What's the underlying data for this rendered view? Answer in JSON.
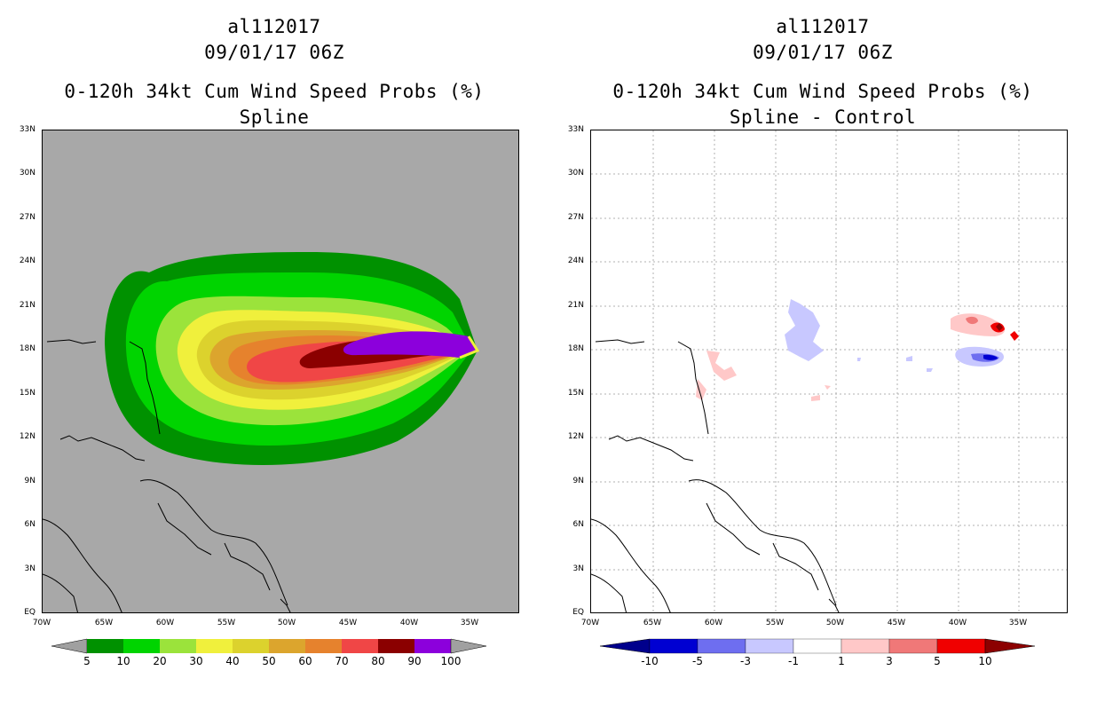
{
  "left": {
    "title_line1": "al112017",
    "title_line2": "09/01/17 06Z",
    "title_line3": "0-120h 34kt Cum Wind Speed Probs (%)",
    "title_line4": "Spline",
    "colorbar": {
      "labels": [
        "5",
        "10",
        "20",
        "30",
        "40",
        "50",
        "60",
        "70",
        "80",
        "90",
        "100"
      ],
      "colors": [
        "#009100",
        "#00d400",
        "#9be33b",
        "#f0f03c",
        "#dcd22d",
        "#dca52d",
        "#e6822d",
        "#f04646",
        "#8b0000",
        "#8c00dc"
      ],
      "end_color": "#a0a0a0"
    },
    "background_color": "#a8a8a8"
  },
  "right": {
    "title_line1": "al112017",
    "title_line2": "09/01/17 06Z",
    "title_line3": "0-120h 34kt Cum Wind Speed Probs (%)",
    "title_line4": "Spline - Control",
    "colorbar": {
      "labels": [
        "-10",
        "-5",
        "-3",
        "-1",
        "1",
        "3",
        "5",
        "10"
      ],
      "colors": [
        "#0000d2",
        "#6e6ef0",
        "#c8c8ff",
        "#ffffff",
        "#ffc8c8",
        "#f07878",
        "#f00000"
      ],
      "low_end_color": "#00008c",
      "high_end_color": "#8c0000"
    },
    "background_color": "#ffffff"
  },
  "axes": {
    "lat_labels": [
      "33N",
      "30N",
      "27N",
      "24N",
      "21N",
      "18N",
      "15N",
      "12N",
      "9N",
      "6N",
      "3N",
      "EQ"
    ],
    "lon_labels": [
      "70W",
      "65W",
      "60W",
      "55W",
      "50W",
      "45W",
      "40W",
      "35W"
    ]
  }
}
